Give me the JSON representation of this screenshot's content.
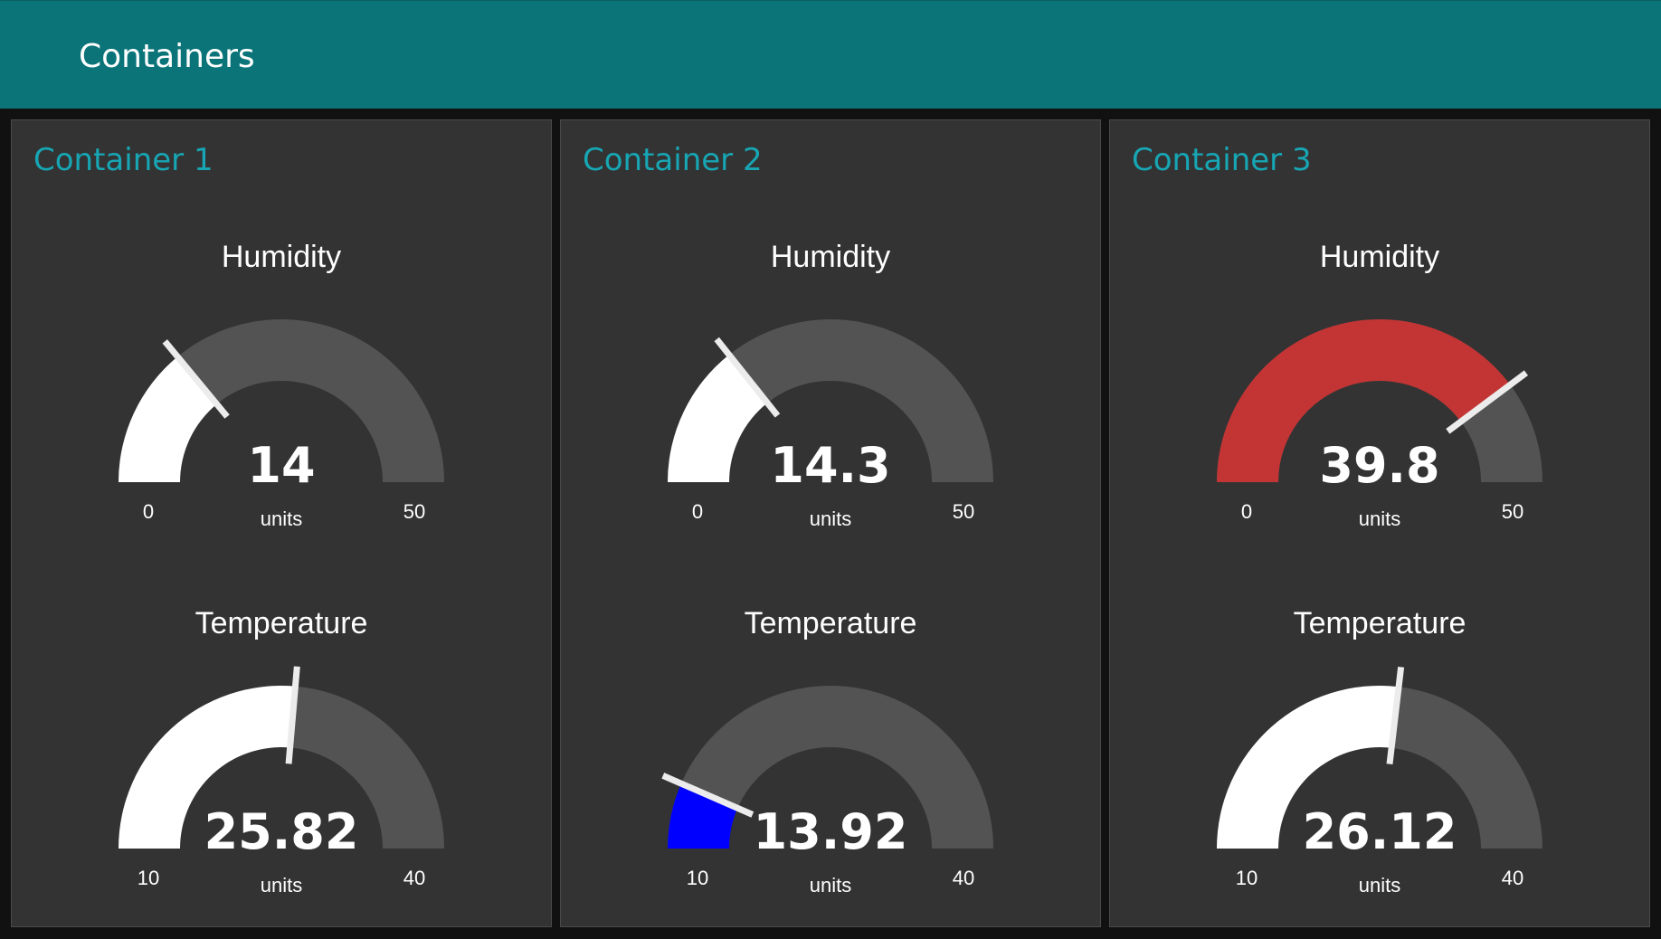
{
  "header": {
    "title": "Containers",
    "color": "#0a7479"
  },
  "colors": {
    "panel_bg": "#333333",
    "panel_title": "#17a6b4",
    "gauge_track": "#535353",
    "text": "#ffffff"
  },
  "containers": [
    {
      "title": "Container 1",
      "gauges": [
        {
          "label": "Humidity",
          "value": 14,
          "display": "14",
          "min": 0,
          "max": 50,
          "min_label": "0",
          "max_label": "50",
          "units": "units",
          "color": "#ffffff"
        },
        {
          "label": "Temperature",
          "value": 25.82,
          "display": "25.82",
          "min": 10,
          "max": 40,
          "min_label": "10",
          "max_label": "40",
          "units": "units",
          "color": "#ffffff"
        }
      ]
    },
    {
      "title": "Container 2",
      "gauges": [
        {
          "label": "Humidity",
          "value": 14.3,
          "display": "14.3",
          "min": 0,
          "max": 50,
          "min_label": "0",
          "max_label": "50",
          "units": "units",
          "color": "#ffffff"
        },
        {
          "label": "Temperature",
          "value": 13.92,
          "display": "13.92",
          "min": 10,
          "max": 40,
          "min_label": "10",
          "max_label": "40",
          "units": "units",
          "color": "#0000ff"
        }
      ]
    },
    {
      "title": "Container 3",
      "gauges": [
        {
          "label": "Humidity",
          "value": 39.8,
          "display": "39.8",
          "min": 0,
          "max": 50,
          "min_label": "0",
          "max_label": "50",
          "units": "units",
          "color": "#c33434"
        },
        {
          "label": "Temperature",
          "value": 26.12,
          "display": "26.12",
          "min": 10,
          "max": 40,
          "min_label": "10",
          "max_label": "40",
          "units": "units",
          "color": "#ffffff"
        }
      ]
    }
  ]
}
